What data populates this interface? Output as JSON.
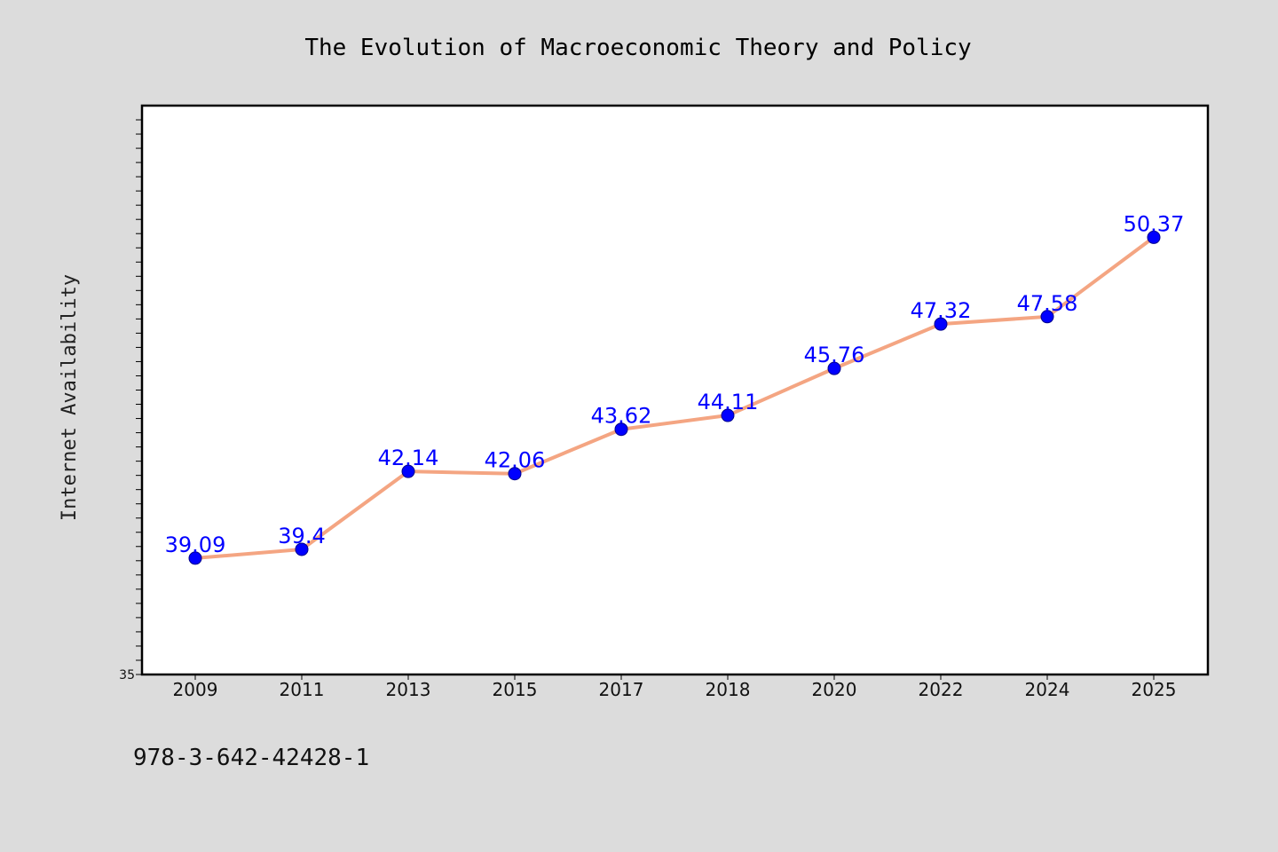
{
  "chart_data": {
    "type": "line",
    "title": "The Evolution of Macroeconomic Theory and Policy",
    "xlabel": "",
    "ylabel": "Internet Availability",
    "categories": [
      "2009",
      "2011",
      "2013",
      "2015",
      "2017",
      "2018",
      "2020",
      "2022",
      "2024",
      "2025"
    ],
    "series": [
      {
        "values": [
          39.09,
          39.4,
          42.14,
          42.06,
          43.62,
          44.11,
          45.76,
          47.32,
          47.58,
          50.37
        ],
        "labels": [
          "39.09",
          "39.4",
          "42.14",
          "42.06",
          "43.62",
          "44.11",
          "45.76",
          "47.32",
          "47.58",
          "50.37"
        ]
      }
    ],
    "ylim": [
      35,
      55
    ],
    "yticks_labeled": [
      "35"
    ],
    "grid": false,
    "legend": "none",
    "colors": {
      "line": "#f4a582",
      "marker": "#0000ff",
      "marker_edge": "#00008b",
      "value_label": "#0000ff",
      "plot_background": "#ffffff",
      "figure_background": "#dcdcdc"
    }
  },
  "footer": {
    "isbn": "978-3-642-42428-1"
  }
}
